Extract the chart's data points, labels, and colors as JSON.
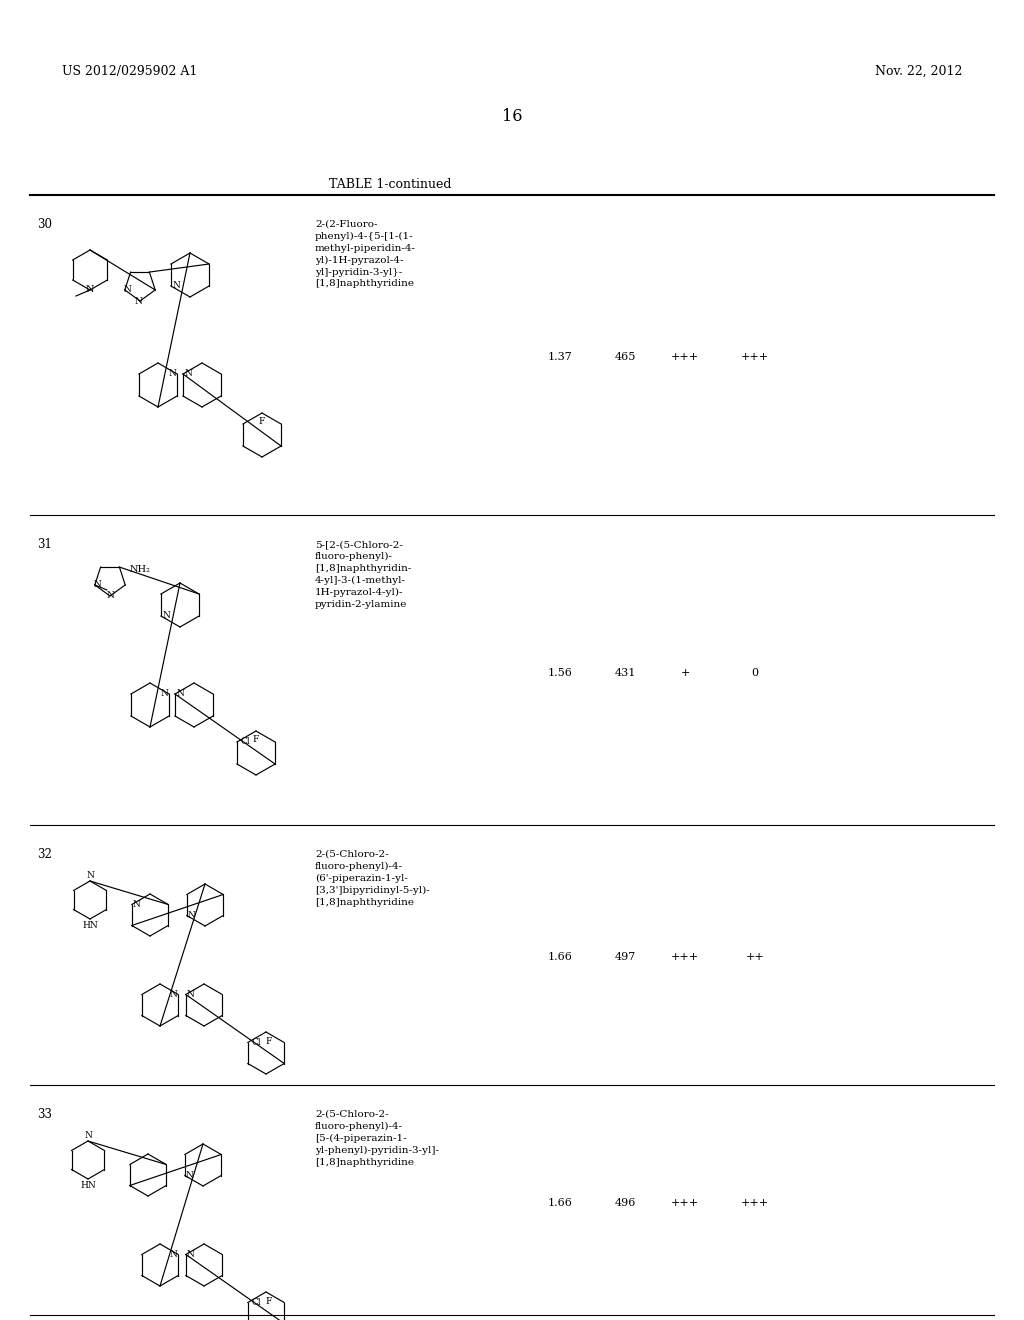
{
  "page_left": "US 2012/0295902 A1",
  "page_right": "Nov. 22, 2012",
  "page_number": "16",
  "table_title": "TABLE 1-continued",
  "background_color": "#ffffff",
  "text_color": "#000000",
  "rows": [
    {
      "compound_num": "30",
      "name": "2-(2-Fluoro-\nphenyl)-4-{5-[1-(1-\nmethyl-piperidin-4-\nyl)-1H-pyrazol-4-\nyl]-pyridin-3-yl}-\n[1,8]naphthyridine",
      "val1": "1.37",
      "val2": "465",
      "val3": "+++",
      "val4": "+++"
    },
    {
      "compound_num": "31",
      "name": "5-[2-(5-Chloro-2-\nfluoro-phenyl)-\n[1,8]naphthyridin-\n4-yl]-3-(1-methyl-\n1H-pyrazol-4-yl)-\npyridin-2-ylamine",
      "val1": "1.56",
      "val2": "431",
      "val3": "+",
      "val4": "0"
    },
    {
      "compound_num": "32",
      "name": "2-(5-Chloro-2-\nfluoro-phenyl)-4-\n(6'-piperazin-1-yl-\n[3,3']bipyridinyl-5-yl)-\n[1,8]naphthyridine",
      "val1": "1.66",
      "val2": "497",
      "val3": "+++",
      "val4": "++"
    },
    {
      "compound_num": "33",
      "name": "2-(5-Chloro-2-\nfluoro-phenyl)-4-\n[5-(4-piperazin-1-\nyl-phenyl)-pyridin-3-yl]-\n[1,8]naphthyridine",
      "val1": "1.66",
      "val2": "496",
      "val3": "+++",
      "val4": "+++"
    }
  ],
  "structure_images": [
    "structure_30.png",
    "structure_31.png",
    "structure_32.png",
    "structure_33.png"
  ]
}
